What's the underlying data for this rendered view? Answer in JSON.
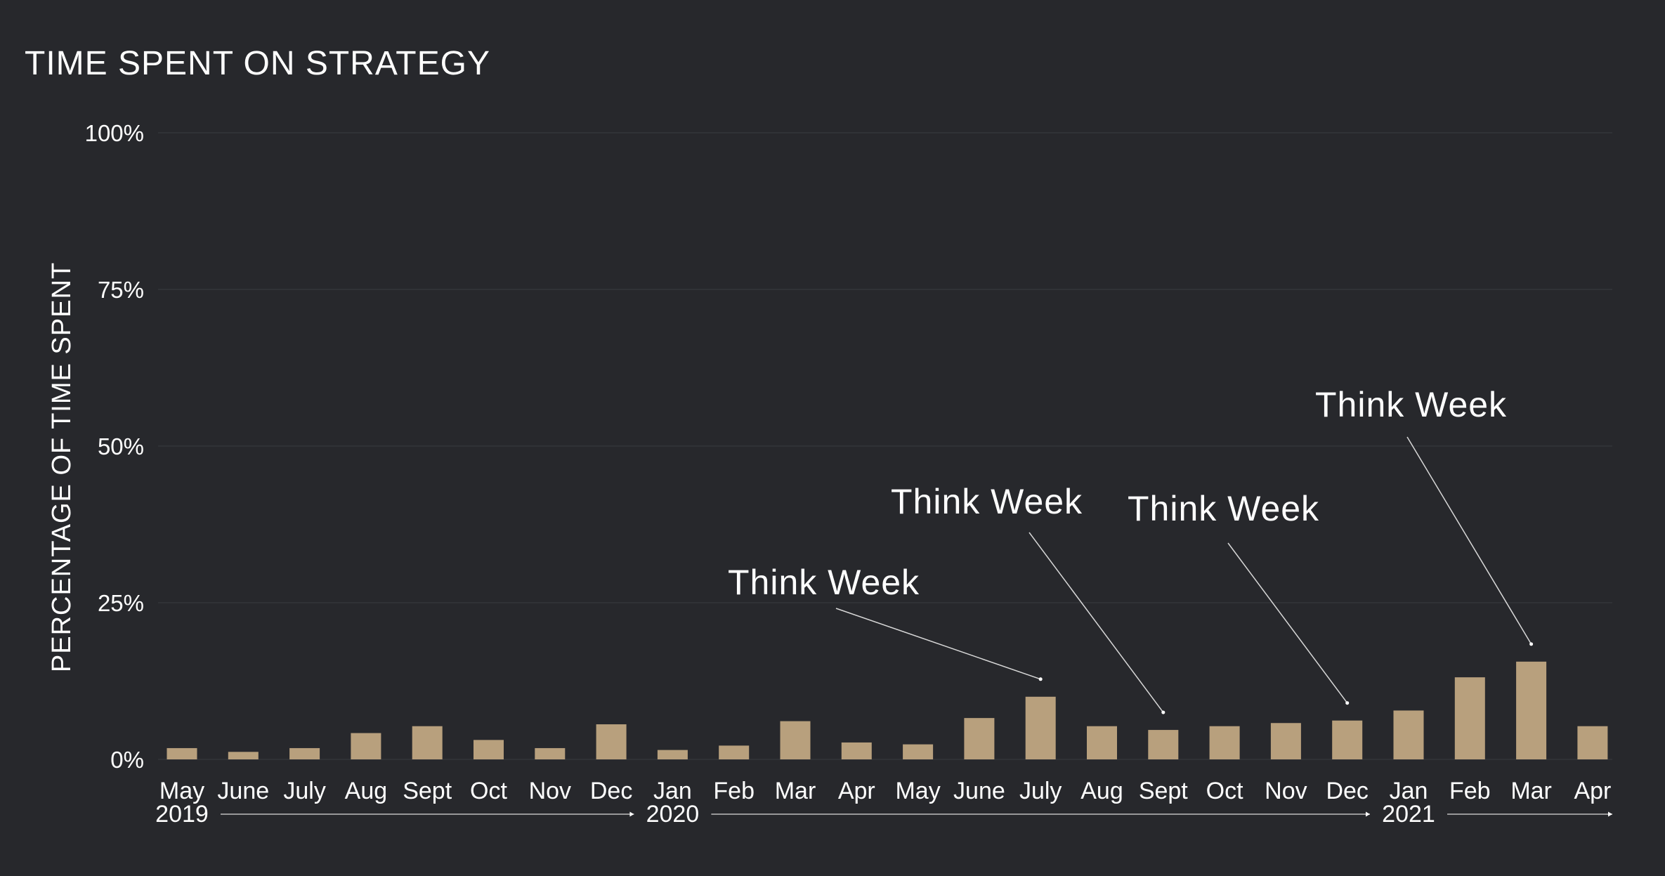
{
  "chart_data": {
    "type": "bar",
    "title": "TIME SPENT ON STRATEGY",
    "ylabel": "PERCENTAGE OF TIME SPENT",
    "xlabel": "",
    "ylim": [
      0,
      100
    ],
    "yticks": [
      "0%",
      "25%",
      "50%",
      "75%",
      "100%"
    ],
    "ytick_values": [
      0,
      25,
      50,
      75,
      100
    ],
    "grid": true,
    "bar_color": "#b8a07d",
    "background": "#27282c",
    "categories": [
      "May",
      "June",
      "July",
      "Aug",
      "Sept",
      "Oct",
      "Nov",
      "Dec",
      "Jan",
      "Feb",
      "Mar",
      "Apr",
      "May",
      "June",
      "July",
      "Aug",
      "Sept",
      "Oct",
      "Nov",
      "Dec",
      "Jan",
      "Feb",
      "Mar",
      "Apr"
    ],
    "values": [
      1.8,
      1.2,
      1.8,
      4.2,
      5.3,
      3.1,
      1.8,
      5.6,
      1.5,
      2.2,
      6.1,
      2.7,
      2.4,
      6.6,
      10.0,
      5.3,
      4.7,
      5.3,
      5.8,
      6.2,
      7.8,
      13.1,
      15.6,
      5.3
    ],
    "years": [
      {
        "label": "2019",
        "index": 0
      },
      {
        "label": "2020",
        "index": 8
      },
      {
        "label": "2021",
        "index": 20
      }
    ],
    "annotations": [
      {
        "text": "Think Week",
        "target_index": 14
      },
      {
        "text": "Think Week",
        "target_index": 16
      },
      {
        "text": "Think Week",
        "target_index": 19
      },
      {
        "text": "Think Week",
        "target_index": 22
      }
    ]
  }
}
